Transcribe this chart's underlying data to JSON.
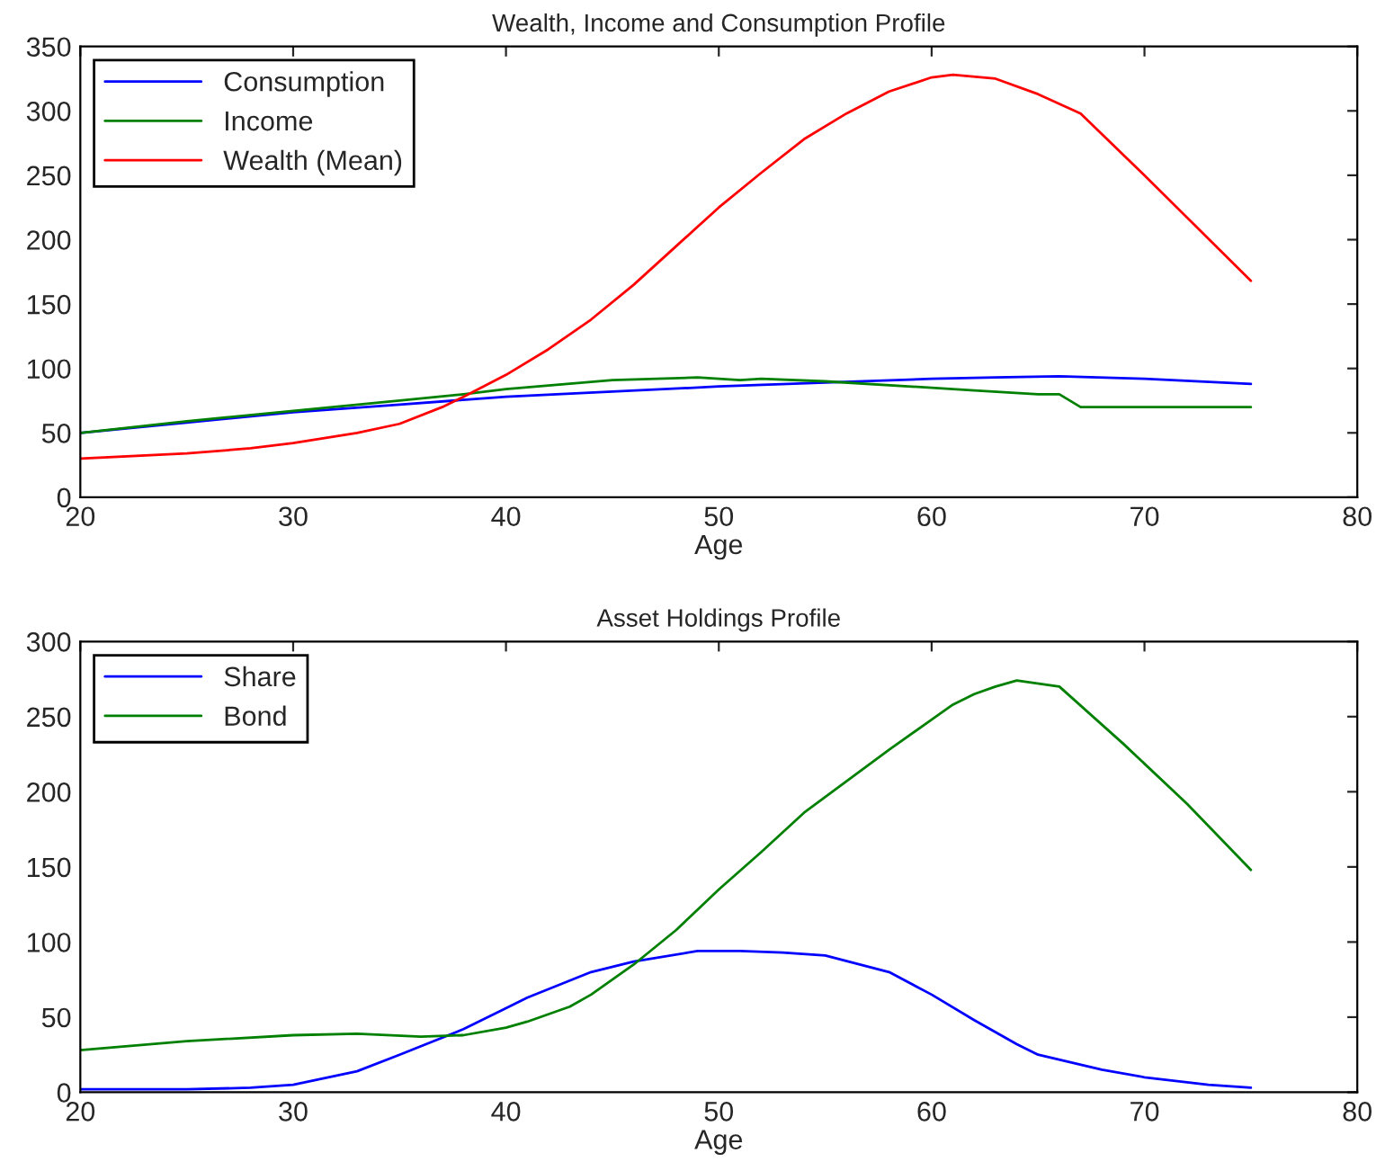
{
  "chart_data": [
    {
      "type": "line",
      "title": "Wealth, Income and Consumption Profile",
      "xlabel": "Age",
      "xlim": [
        20,
        80
      ],
      "xticks": [
        20,
        30,
        40,
        50,
        60,
        70,
        80
      ],
      "ylim": [
        0,
        350
      ],
      "yticks": [
        0,
        50,
        100,
        150,
        200,
        250,
        300,
        350
      ],
      "grid": false,
      "legend": "top left",
      "series": [
        {
          "name": "Consumption",
          "color": "#0000ff",
          "x": [
            20,
            25,
            30,
            35,
            40,
            45,
            50,
            55,
            60,
            63,
            66,
            70,
            75
          ],
          "values": [
            50,
            58,
            66,
            72,
            78,
            82,
            86,
            89,
            92,
            93,
            94,
            92,
            88
          ]
        },
        {
          "name": "Income",
          "color": "#008000",
          "x": [
            20,
            25,
            30,
            35,
            38,
            40,
            45,
            49,
            51,
            52,
            55,
            60,
            62,
            65,
            66,
            67,
            75
          ],
          "values": [
            50,
            59,
            67,
            75,
            80,
            84,
            91,
            93,
            91,
            92,
            90,
            85,
            83,
            80,
            80,
            70,
            70
          ]
        },
        {
          "name": "Wealth (Mean)",
          "color": "#ff0000",
          "x": [
            20,
            25,
            28,
            30,
            33,
            35,
            37,
            38,
            40,
            42,
            44,
            46,
            48,
            50,
            52,
            54,
            56,
            58,
            60,
            61,
            63,
            65,
            67,
            70,
            75
          ],
          "values": [
            30,
            34,
            38,
            42,
            50,
            57,
            70,
            78,
            95,
            115,
            138,
            165,
            195,
            225,
            252,
            278,
            298,
            315,
            326,
            328,
            325,
            313,
            298,
            250,
            168
          ]
        }
      ]
    },
    {
      "type": "line",
      "title": "Asset Holdings Profile",
      "xlabel": "Age",
      "xlim": [
        20,
        80
      ],
      "xticks": [
        20,
        30,
        40,
        50,
        60,
        70,
        80
      ],
      "ylim": [
        0,
        300
      ],
      "yticks": [
        0,
        50,
        100,
        150,
        200,
        250,
        300
      ],
      "grid": false,
      "legend": "top left",
      "series": [
        {
          "name": "Share",
          "color": "#0000ff",
          "x": [
            20,
            25,
            28,
            30,
            33,
            35,
            38,
            40,
            41,
            44,
            46,
            49,
            51,
            53,
            55,
            58,
            60,
            62,
            64,
            65,
            68,
            70,
            73,
            75
          ],
          "values": [
            2,
            2,
            3,
            5,
            14,
            25,
            42,
            56,
            63,
            80,
            87,
            94,
            94,
            93,
            91,
            80,
            65,
            48,
            32,
            25,
            15,
            10,
            5,
            3
          ]
        },
        {
          "name": "Bond",
          "color": "#008000",
          "x": [
            20,
            25,
            30,
            33,
            36,
            38,
            40,
            41,
            43,
            44,
            46,
            48,
            50,
            52,
            54,
            56,
            58,
            60,
            61,
            62,
            63,
            64,
            66,
            69,
            72,
            75
          ],
          "values": [
            28,
            34,
            38,
            39,
            37,
            38,
            43,
            47,
            57,
            65,
            85,
            108,
            135,
            160,
            186,
            207,
            228,
            248,
            258,
            265,
            270,
            274,
            270,
            232,
            192,
            148
          ]
        }
      ]
    }
  ]
}
